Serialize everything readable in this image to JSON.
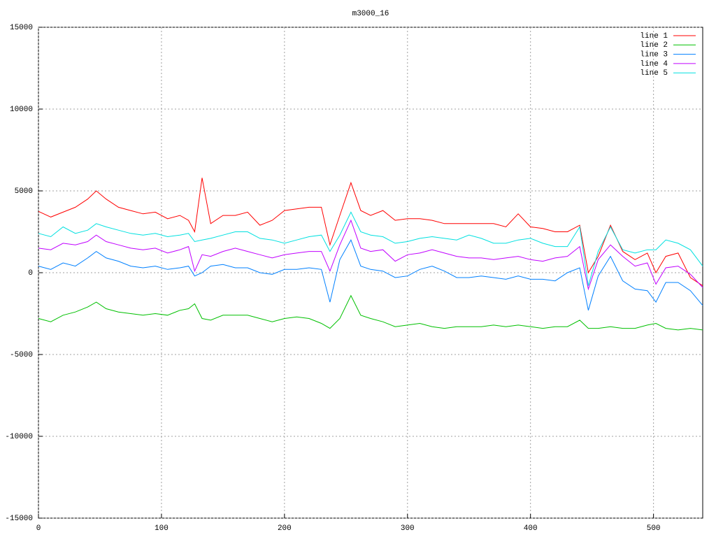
{
  "chart_data": {
    "type": "line",
    "title": "m3000_16",
    "x": [
      0,
      10,
      20,
      30,
      40,
      47,
      55,
      65,
      75,
      85,
      95,
      105,
      115,
      122,
      127,
      133,
      140,
      150,
      160,
      170,
      180,
      190,
      200,
      210,
      220,
      230,
      237,
      245,
      254,
      262,
      270,
      280,
      290,
      300,
      310,
      320,
      330,
      340,
      350,
      360,
      370,
      380,
      390,
      400,
      410,
      420,
      430,
      440,
      447,
      455,
      465,
      475,
      485,
      495,
      502,
      510,
      520,
      530,
      540
    ],
    "series": [
      {
        "name": "line 1",
        "color": "#ff0000",
        "values": [
          3750,
          3400,
          3700,
          4000,
          4500,
          5000,
          4500,
          4000,
          3800,
          3600,
          3700,
          3300,
          3500,
          3200,
          2500,
          5800,
          3000,
          3500,
          3500,
          3700,
          2900,
          3200,
          3800,
          3900,
          4000,
          4000,
          1700,
          3500,
          5500,
          3800,
          3500,
          3800,
          3200,
          3300,
          3300,
          3200,
          3000,
          3000,
          3000,
          3000,
          3000,
          2800,
          3600,
          2800,
          2700,
          2500,
          2500,
          2900,
          0,
          1000,
          2900,
          1300,
          800,
          1200,
          0,
          1000,
          1200,
          -300,
          -800
        ]
      },
      {
        "name": "line 2",
        "color": "#00c000",
        "values": [
          -2800,
          -3000,
          -2600,
          -2400,
          -2100,
          -1800,
          -2200,
          -2400,
          -2500,
          -2600,
          -2500,
          -2600,
          -2300,
          -2200,
          -1900,
          -2800,
          -2900,
          -2600,
          -2600,
          -2600,
          -2800,
          -3000,
          -2800,
          -2700,
          -2800,
          -3100,
          -3400,
          -2800,
          -1400,
          -2600,
          -2800,
          -3000,
          -3300,
          -3200,
          -3100,
          -3300,
          -3400,
          -3300,
          -3300,
          -3300,
          -3200,
          -3300,
          -3200,
          -3300,
          -3400,
          -3300,
          -3300,
          -2900,
          -3400,
          -3400,
          -3300,
          -3400,
          -3400,
          -3200,
          -3100,
          -3400,
          -3500,
          -3400,
          -3500
        ]
      },
      {
        "name": "line 3",
        "color": "#0080ff",
        "values": [
          400,
          200,
          600,
          400,
          900,
          1300,
          900,
          700,
          400,
          300,
          400,
          200,
          300,
          400,
          -200,
          0,
          400,
          500,
          300,
          300,
          0,
          -100,
          200,
          200,
          300,
          200,
          -1800,
          800,
          2000,
          400,
          200,
          100,
          -300,
          -200,
          200,
          400,
          100,
          -300,
          -300,
          -200,
          -300,
          -400,
          -200,
          -400,
          -400,
          -500,
          0,
          300,
          -2300,
          -200,
          1000,
          -500,
          -1000,
          -1100,
          -1800,
          -600,
          -600,
          -1100,
          -2000
        ]
      },
      {
        "name": "line 4",
        "color": "#c000ff",
        "values": [
          1500,
          1400,
          1800,
          1700,
          1900,
          2300,
          1900,
          1700,
          1500,
          1400,
          1500,
          1200,
          1400,
          1600,
          100,
          1100,
          1000,
          1300,
          1500,
          1300,
          1100,
          900,
          1100,
          1200,
          1300,
          1300,
          100,
          1700,
          3200,
          1500,
          1300,
          1400,
          700,
          1100,
          1200,
          1400,
          1200,
          1000,
          900,
          900,
          800,
          900,
          1000,
          800,
          700,
          900,
          1000,
          1600,
          -1000,
          800,
          1700,
          1000,
          400,
          600,
          -700,
          300,
          400,
          -100,
          -900
        ]
      },
      {
        "name": "line 5",
        "color": "#00e0e0",
        "values": [
          2400,
          2200,
          2800,
          2400,
          2600,
          3000,
          2800,
          2600,
          2400,
          2300,
          2400,
          2200,
          2300,
          2400,
          1900,
          2000,
          2100,
          2300,
          2500,
          2500,
          2100,
          2000,
          1800,
          2000,
          2200,
          2300,
          1300,
          2300,
          3700,
          2500,
          2300,
          2200,
          1800,
          1900,
          2100,
          2200,
          2100,
          2000,
          2300,
          2100,
          1800,
          1800,
          2000,
          2100,
          1800,
          1600,
          1600,
          2800,
          -800,
          1300,
          2800,
          1400,
          1200,
          1400,
          1400,
          2000,
          1800,
          1400,
          400
        ]
      }
    ],
    "xlim": [
      0,
      540
    ],
    "xticks": [
      0,
      100,
      200,
      300,
      400,
      500
    ],
    "ylim": [
      -15000,
      15000
    ],
    "yticks": [
      -15000,
      -10000,
      -5000,
      0,
      5000,
      10000,
      15000
    ],
    "grid": true,
    "legend": "top-right"
  }
}
